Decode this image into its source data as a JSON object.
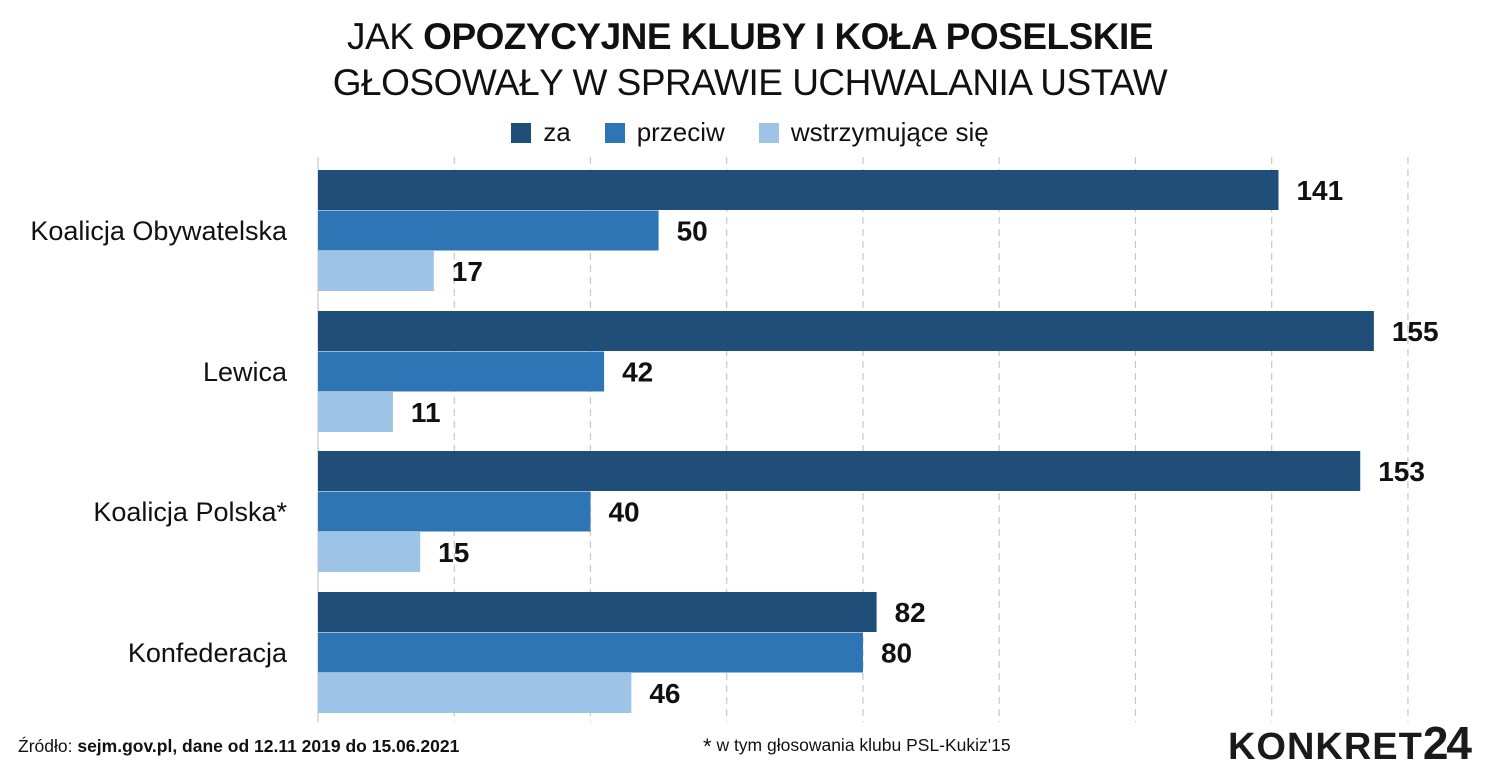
{
  "title": {
    "line1_light": "JAK",
    "line1_bold": "OPOZYCYJNE KLUBY I KOŁA POSELSKIE",
    "line2": "GŁOSOWAŁY W SPRAWIE UCHWALANIA USTAW"
  },
  "legend": [
    {
      "label": "za",
      "color": "#1f4e79"
    },
    {
      "label": "przeciw",
      "color": "#2e75b6"
    },
    {
      "label": "wstrzymujące się",
      "color": "#9dc3e6"
    }
  ],
  "chart_data": {
    "type": "bar",
    "orientation": "horizontal",
    "categories": [
      "Koalicja Obywatelska",
      "Lewica",
      "Koalicja Polska*",
      "Konfederacja"
    ],
    "series": [
      {
        "name": "za",
        "color": "#1f4e79",
        "values": [
          141,
          155,
          153,
          82
        ]
      },
      {
        "name": "przeciw",
        "color": "#2e75b6",
        "values": [
          50,
          42,
          40,
          80
        ]
      },
      {
        "name": "wstrzymujące się",
        "color": "#9dc3e6",
        "values": [
          17,
          11,
          15,
          46
        ]
      }
    ],
    "xlim": [
      0,
      160
    ],
    "grid": true,
    "grid_style": "dashed",
    "legend_position": "top"
  },
  "footer": {
    "source_label": "Źródło:",
    "source_text": "sejm.gov.pl, dane od 12.11 2019 do 15.06.2021",
    "note_star": "*",
    "note_text": "w tym głosowania klubu PSL-Kukiz'15",
    "logo_text": "KONKRET",
    "logo_number": "24"
  }
}
